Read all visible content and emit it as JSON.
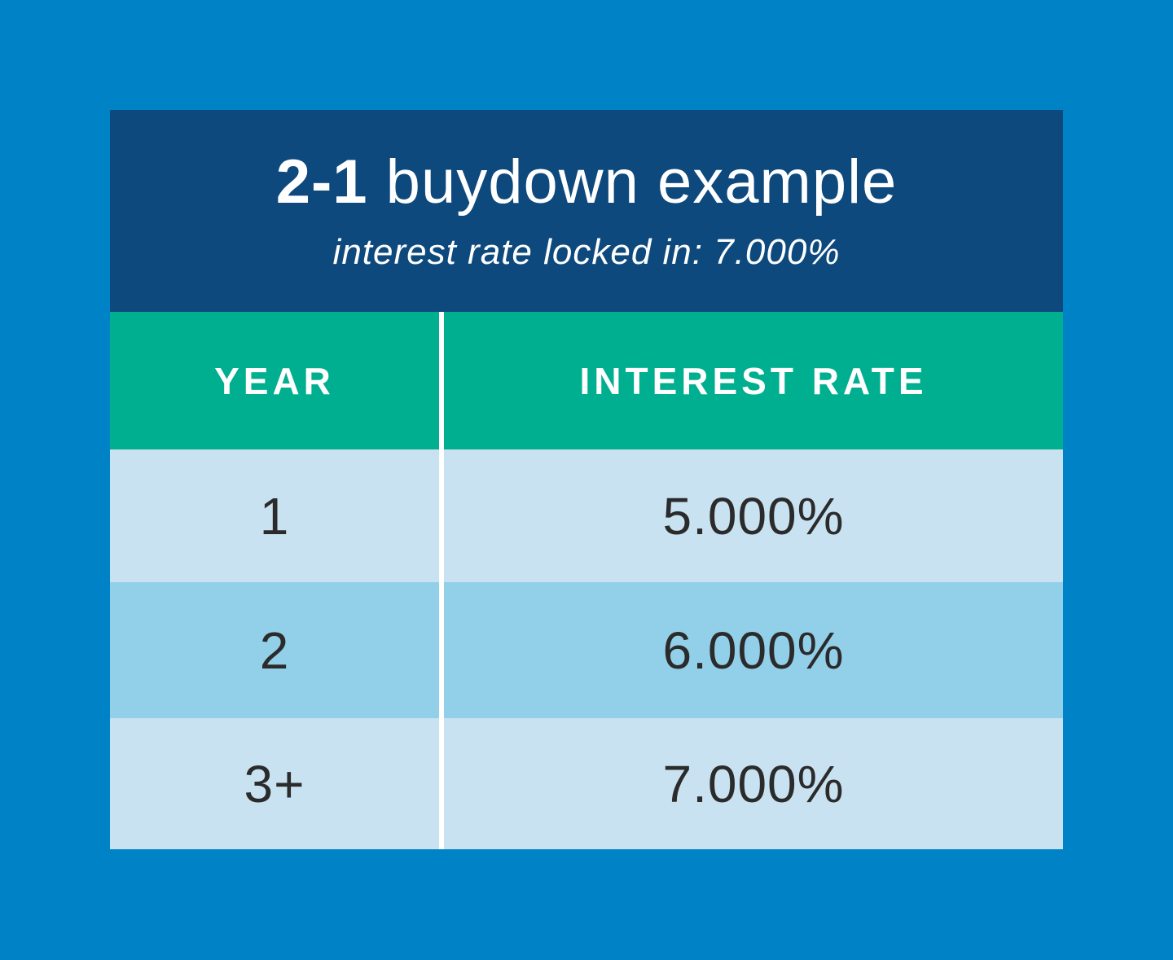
{
  "page": {
    "background_color": "#0082C6"
  },
  "card": {
    "header": {
      "background_color": "#0E497D",
      "title_bold": "2-1",
      "title_rest": " buydown example",
      "subtitle": "interest rate locked in: 7.000%"
    },
    "table": {
      "header": {
        "background_color": "#00AF8F",
        "columns": [
          "YEAR",
          "INTEREST RATE"
        ]
      },
      "divider_color": "#FFFFFF",
      "row_colors": {
        "light": "#C9E2F1",
        "medium": "#92CFE9"
      },
      "rows": [
        {
          "year": "1",
          "rate": "5.000%",
          "shade": "light"
        },
        {
          "year": "2",
          "rate": "6.000%",
          "shade": "medium"
        },
        {
          "year": "3+",
          "rate": "7.000%",
          "shade": "light"
        }
      ]
    }
  },
  "chart_data": {
    "type": "table",
    "title": "2-1 buydown example",
    "subtitle": "interest rate locked in: 7.000%",
    "locked_rate_percent": 7.0,
    "columns": [
      "YEAR",
      "INTEREST RATE"
    ],
    "rows": [
      [
        "1",
        "5.000%"
      ],
      [
        "2",
        "6.000%"
      ],
      [
        "3+",
        "7.000%"
      ]
    ],
    "year_rates": [
      {
        "year": "1",
        "rate_percent": 5.0
      },
      {
        "year": "2",
        "rate_percent": 6.0
      },
      {
        "year": "3+",
        "rate_percent": 7.0
      }
    ]
  }
}
